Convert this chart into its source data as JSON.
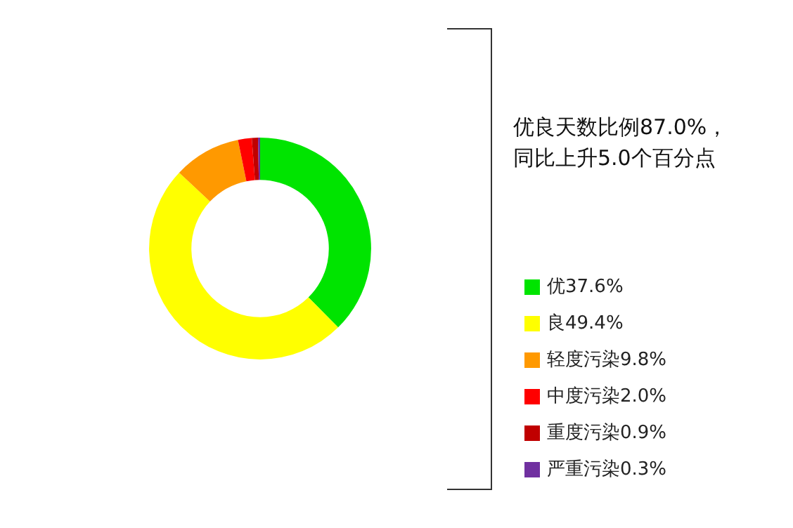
{
  "chart_data": {
    "type": "donut",
    "categories": [
      "优37.6%",
      "良49.4%",
      "轻度污染9.8%",
      "中度污染2.0%",
      "重度污染0.9%",
      "严重污染0.3%"
    ],
    "values": [
      37.6,
      49.4,
      9.8,
      2.0,
      0.9,
      0.3
    ],
    "colors": [
      "#00e400",
      "#ffff00",
      "#ff9900",
      "#ff0000",
      "#c00000",
      "#7030a0"
    ],
    "annotations": [
      "优良天数比例87.0%，",
      "同比上升5.0个百分点"
    ],
    "legend": "right"
  }
}
